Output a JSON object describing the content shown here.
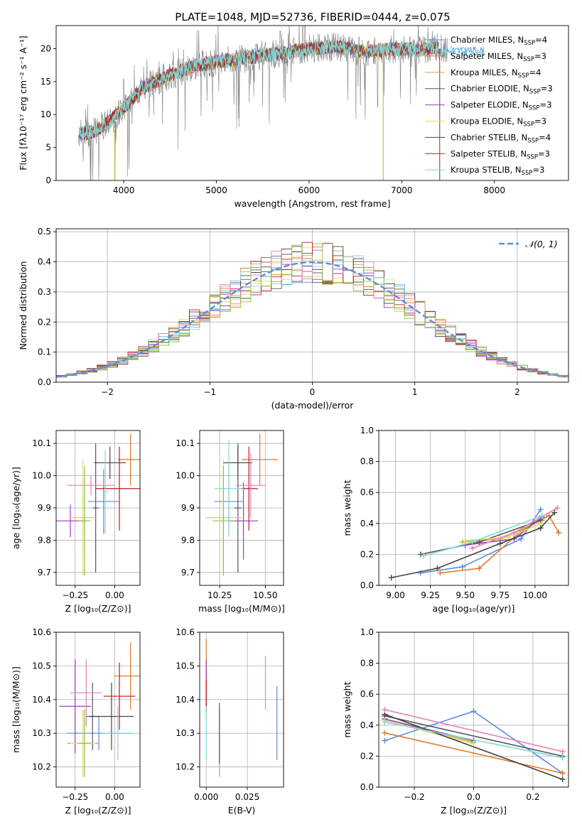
{
  "figure": {
    "title": "PLATE=1048, MJD=52736, FIBERID=0444, z=0.075"
  },
  "colors": {
    "blue": "#5b8ee0",
    "orange": "#e07a2a",
    "khaki": "#c8a83e",
    "gray": "#555555",
    "purple": "#9b3cc0",
    "yellow": "#dede60",
    "darkgray": "#444444",
    "red": "#c01818",
    "cyan": "#7fd8d8",
    "pink": "#e87fb8",
    "green": "#8cc63f",
    "gaussian": "#5b8ee0"
  },
  "chart_data": [
    {
      "id": "spectrum",
      "type": "line",
      "title": "PLATE=1048, MJD=52736, FIBERID=0444, z=0.075",
      "xlabel": "wavelength [Angstrom, rest frame]",
      "ylabel": "Flux [fλ10⁻¹⁷ erg cm⁻² s⁻¹ A⁻¹]",
      "xlim": [
        3270,
        8800
      ],
      "ylim": [
        0,
        23.5
      ],
      "xticks": [
        4000,
        5000,
        6000,
        7000,
        8000
      ],
      "yticks": [
        0,
        5,
        10,
        15,
        20
      ],
      "legend_position": "right",
      "legend": [
        {
          "name": "Chabrier MILES, N_SSP=4",
          "color": "#5b8ee0"
        },
        {
          "name": "Salpeter MILES, N_SSP=3",
          "color": "#e07a2a"
        },
        {
          "name": "Kroupa MILES, N_SSP=4",
          "color": "#c8a83e"
        },
        {
          "name": "Chabrier ELODIE, N_SSP=3",
          "color": "#555555"
        },
        {
          "name": "Salpeter ELODIE, N_SSP=3",
          "color": "#9b3cc0"
        },
        {
          "name": "Kroupa ELODIE, N_SSP=3",
          "color": "#dede60"
        },
        {
          "name": "Chabrier STELIB, N_SSP=4",
          "color": "#444444"
        },
        {
          "name": "Salpeter STELIB, N_SSP=3",
          "color": "#c01818"
        },
        {
          "name": "Kroupa STELIB, N_SSP=3",
          "color": "#7fd8d8"
        }
      ],
      "continuum": [
        [
          3500,
          7
        ],
        [
          3700,
          7.5
        ],
        [
          3850,
          9
        ],
        [
          4000,
          11
        ],
        [
          4200,
          14
        ],
        [
          4500,
          16
        ],
        [
          4800,
          17.5
        ],
        [
          5000,
          18
        ],
        [
          5200,
          18.3
        ],
        [
          5500,
          19
        ],
        [
          5800,
          19.5
        ],
        [
          6000,
          20
        ],
        [
          6300,
          20.3
        ],
        [
          6600,
          19.5
        ],
        [
          6800,
          19.8
        ],
        [
          7000,
          20
        ],
        [
          7200,
          19.8
        ],
        [
          7400,
          20.2
        ],
        [
          7500,
          20
        ]
      ]
    },
    {
      "id": "residuals",
      "type": "bar",
      "xlabel": "(data-model)/error",
      "ylabel": "Normed distribution",
      "xlim": [
        -2.5,
        2.5
      ],
      "ylim": [
        0,
        0.51
      ],
      "xticks": [
        -2,
        -1,
        0,
        1,
        2
      ],
      "yticks": [
        0.0,
        0.1,
        0.2,
        0.3,
        0.4,
        0.5
      ],
      "legend": [
        {
          "name": "𝒩(0, 1)",
          "color": "#5b8ee0",
          "style": "dashed"
        }
      ],
      "bin_width": 0.1
    },
    {
      "id": "age-vs-Z",
      "type": "scatter",
      "xlabel": "Z [log₁₀(Z/Z⊙)]",
      "ylabel": "age  [log₁₀(age/yr)]",
      "xlim": [
        -0.37,
        0.16
      ],
      "ylim": [
        9.66,
        10.14
      ],
      "xticks": [
        -0.25,
        0.0
      ],
      "xtick_labels": [
        "−0.25",
        "0.00"
      ],
      "yticks": [
        9.7,
        9.8,
        9.9,
        10.0,
        10.1
      ],
      "points": [
        {
          "x": -0.07,
          "y": 9.92,
          "xerr": 0.1,
          "yerr": 0.1,
          "color": "#5b8ee0"
        },
        {
          "x": 0.1,
          "y": 10.05,
          "xerr": 0.08,
          "yerr": 0.08,
          "color": "#e07a2a"
        },
        {
          "x": -0.2,
          "y": 9.87,
          "xerr": 0.08,
          "yerr": 0.11,
          "color": "#c8a83e"
        },
        {
          "x": -0.12,
          "y": 9.9,
          "xerr": 0.02,
          "yerr": 0.2,
          "color": "#555555"
        },
        {
          "x": -0.28,
          "y": 9.86,
          "xerr": 0.1,
          "yerr": 0.05,
          "color": "#9b3cc0"
        },
        {
          "x": -0.2,
          "y": 9.87,
          "xerr": 0.08,
          "yerr": 0.18,
          "color": "#dede60"
        },
        {
          "x": -0.03,
          "y": 10.04,
          "xerr": 0.1,
          "yerr": 0.05,
          "color": "#444444"
        },
        {
          "x": 0.03,
          "y": 9.96,
          "xerr": 0.15,
          "yerr": 0.13,
          "color": "#c01818"
        },
        {
          "x": -0.15,
          "y": 9.97,
          "xerr": 0.15,
          "yerr": 0.03,
          "color": "#e87fb8"
        },
        {
          "x": -0.19,
          "y": 9.86,
          "xerr": 0.04,
          "yerr": 0.17,
          "color": "#8cc63f"
        },
        {
          "x": -0.06,
          "y": 9.95,
          "xerr": 0.02,
          "yerr": 0.13,
          "color": "#7fd8d8"
        }
      ]
    },
    {
      "id": "age-vs-mass",
      "type": "scatter",
      "xlabel": "mass [log₁₀(M/M⊙)]",
      "ylabel": "",
      "xlim": [
        10.14,
        10.6
      ],
      "ylim": [
        9.66,
        10.14
      ],
      "xticks": [
        10.25,
        10.5
      ],
      "xtick_labels": [
        "10.25",
        "10.50"
      ],
      "yticks": [
        9.7,
        9.8,
        9.9,
        10.0,
        10.1
      ],
      "points": [
        {
          "x": 10.3,
          "y": 9.92,
          "xerr": 0.08,
          "yerr": 0.1,
          "color": "#5b8ee0"
        },
        {
          "x": 10.47,
          "y": 10.05,
          "xerr": 0.1,
          "yerr": 0.08,
          "color": "#e07a2a"
        },
        {
          "x": 10.27,
          "y": 9.87,
          "xerr": 0.1,
          "yerr": 0.11,
          "color": "#c8a83e"
        },
        {
          "x": 10.35,
          "y": 9.9,
          "xerr": 0.02,
          "yerr": 0.2,
          "color": "#555555"
        },
        {
          "x": 10.38,
          "y": 9.86,
          "xerr": 0.08,
          "yerr": 0.12,
          "color": "#9b3cc0"
        },
        {
          "x": 10.27,
          "y": 9.87,
          "xerr": 0.1,
          "yerr": 0.18,
          "color": "#dede60"
        },
        {
          "x": 10.35,
          "y": 10.04,
          "xerr": 0.08,
          "yerr": 0.05,
          "color": "#444444"
        },
        {
          "x": 10.41,
          "y": 9.96,
          "xerr": 0.05,
          "yerr": 0.13,
          "color": "#c01818"
        },
        {
          "x": 10.42,
          "y": 9.97,
          "xerr": 0.08,
          "yerr": 0.1,
          "color": "#e87fb8"
        },
        {
          "x": 10.27,
          "y": 9.86,
          "xerr": 0.06,
          "yerr": 0.17,
          "color": "#8cc63f"
        },
        {
          "x": 10.3,
          "y": 9.96,
          "xerr": 0.08,
          "yerr": 0.15,
          "color": "#7fd8d8"
        }
      ]
    },
    {
      "id": "weight-vs-age",
      "type": "line",
      "xlabel": "age  [log₁₀(age/yr)]",
      "ylabel": "mass weight",
      "xlim": [
        8.88,
        10.24
      ],
      "ylim": [
        0,
        1.0
      ],
      "xticks": [
        9.0,
        9.25,
        9.5,
        9.75,
        10.0
      ],
      "xtick_labels": [
        "9.00",
        "9.25",
        "9.50",
        "9.75",
        "10.00"
      ],
      "yticks": [
        0.0,
        0.2,
        0.4,
        0.6,
        0.8,
        1.0
      ],
      "series": [
        {
          "color": "#5b8ee0",
          "points": [
            [
              9.18,
              0.08
            ],
            [
              9.48,
              0.12
            ],
            [
              9.9,
              0.3
            ],
            [
              10.04,
              0.49
            ]
          ]
        },
        {
          "color": "#e07a2a",
          "points": [
            [
              9.32,
              0.08
            ],
            [
              9.6,
              0.11
            ],
            [
              9.9,
              0.35
            ],
            [
              10.1,
              0.45
            ],
            [
              10.17,
              0.34
            ]
          ]
        },
        {
          "color": "#c8a83e",
          "points": [
            [
              9.48,
              0.28
            ],
            [
              9.75,
              0.3
            ],
            [
              10.05,
              0.42
            ]
          ]
        },
        {
          "color": "#555555",
          "points": [
            [
              9.18,
              0.2
            ],
            [
              9.6,
              0.28
            ],
            [
              10.04,
              0.42
            ]
          ]
        },
        {
          "color": "#9b3cc0",
          "points": [
            [
              9.5,
              0.26
            ],
            [
              9.85,
              0.3
            ],
            [
              10.05,
              0.44
            ]
          ]
        },
        {
          "color": "#dede60",
          "points": [
            [
              9.5,
              0.29
            ],
            [
              9.8,
              0.31
            ],
            [
              10.05,
              0.4
            ]
          ]
        },
        {
          "color": "#444444",
          "points": [
            [
              8.97,
              0.05
            ],
            [
              9.3,
              0.11
            ],
            [
              9.75,
              0.27
            ],
            [
              10.04,
              0.37
            ],
            [
              10.14,
              0.47
            ]
          ]
        },
        {
          "color": "#e87fb8",
          "points": [
            [
              9.55,
              0.24
            ],
            [
              9.85,
              0.34
            ],
            [
              10.16,
              0.5
            ]
          ]
        },
        {
          "color": "#7fd8d8",
          "points": [
            [
              9.2,
              0.19
            ],
            [
              9.55,
              0.28
            ],
            [
              10.05,
              0.45
            ]
          ]
        }
      ]
    },
    {
      "id": "mass-vs-Z",
      "type": "scatter",
      "xlabel": "Z [log₁₀(Z/Z⊙)]",
      "ylabel": "mass [log₁₀(M/M⊙)]",
      "xlim": [
        -0.37,
        0.16
      ],
      "ylim": [
        10.14,
        10.6
      ],
      "xticks": [
        -0.25,
        0.0
      ],
      "xtick_labels": [
        "−0.25",
        "0.00"
      ],
      "yticks": [
        10.2,
        10.3,
        10.4,
        10.5,
        10.6
      ],
      "points": [
        {
          "x": -0.1,
          "y": 10.3,
          "xerr": 0.2,
          "yerr": 0.05,
          "color": "#5b8ee0"
        },
        {
          "x": 0.1,
          "y": 10.47,
          "xerr": 0.1,
          "yerr": 0.1,
          "color": "#e07a2a"
        },
        {
          "x": -0.2,
          "y": 10.27,
          "xerr": 0.1,
          "yerr": 0.1,
          "color": "#c8a83e"
        },
        {
          "x": -0.14,
          "y": 10.35,
          "xerr": 0.04,
          "yerr": 0.1,
          "color": "#555555"
        },
        {
          "x": -0.25,
          "y": 10.38,
          "xerr": 0.1,
          "yerr": 0.14,
          "color": "#9b3cc0"
        },
        {
          "x": -0.2,
          "y": 10.27,
          "xerr": 0.08,
          "yerr": 0.1,
          "color": "#dede60"
        },
        {
          "x": -0.02,
          "y": 10.35,
          "xerr": 0.14,
          "yerr": 0.1,
          "color": "#444444"
        },
        {
          "x": 0.03,
          "y": 10.41,
          "xerr": 0.1,
          "yerr": 0.1,
          "color": "#c01818"
        },
        {
          "x": -0.18,
          "y": 10.42,
          "xerr": 0.1,
          "yerr": 0.1,
          "color": "#e87fb8"
        },
        {
          "x": -0.19,
          "y": 10.27,
          "xerr": 0.04,
          "yerr": 0.1,
          "color": "#8cc63f"
        },
        {
          "x": 0.02,
          "y": 10.3,
          "xerr": 0.1,
          "yerr": 0.08,
          "color": "#7fd8d8"
        }
      ]
    },
    {
      "id": "mass-vs-ebv",
      "type": "scatter",
      "xlabel": "E(B-V)",
      "ylabel": "",
      "xlim": [
        -0.004,
        0.047
      ],
      "ylim": [
        10.14,
        10.6
      ],
      "xticks": [
        0.0,
        0.025
      ],
      "xtick_labels": [
        "0.000",
        "0.025"
      ],
      "yticks": [
        10.2,
        10.3,
        10.4,
        10.5,
        10.6
      ],
      "points": [
        {
          "x": 0.043,
          "y": 10.33,
          "xerr": 0,
          "yerr": 0.11,
          "color": "#5b8ee0"
        },
        {
          "x": 0.0,
          "y": 10.47,
          "xerr": 0,
          "yerr": 0.11,
          "color": "#e07a2a"
        },
        {
          "x": 0.0,
          "y": 10.44,
          "xerr": 0,
          "yerr": 0.08,
          "color": "#9b3cc0"
        },
        {
          "x": 0.0,
          "y": 10.41,
          "xerr": 0,
          "yerr": 0.05,
          "color": "#c01818"
        },
        {
          "x": 0.036,
          "y": 10.45,
          "xerr": 0,
          "yerr": 0.08,
          "color": "#e87fb8"
        },
        {
          "x": 0.0,
          "y": 10.3,
          "xerr": 0,
          "yerr": 0.08,
          "color": "#7fd8d8"
        },
        {
          "x": 0.008,
          "y": 10.27,
          "xerr": 0,
          "yerr": 0.1,
          "color": "#8cc63f"
        },
        {
          "x": 0.008,
          "y": 10.3,
          "xerr": 0,
          "yerr": 0.09,
          "color": "#555555"
        }
      ]
    },
    {
      "id": "weight-vs-Z",
      "type": "line",
      "xlabel": "Z [log₁₀(Z/Z⊙)]",
      "ylabel": "mass weight",
      "xlim": [
        -0.32,
        0.32
      ],
      "ylim": [
        0,
        1.0
      ],
      "xticks": [
        -0.2,
        0.0,
        0.2
      ],
      "xtick_labels": [
        "−0.2",
        "0.0",
        "0.2"
      ],
      "yticks": [
        0.0,
        0.2,
        0.4,
        0.6,
        0.8,
        1.0
      ],
      "series": [
        {
          "color": "#5b8ee0",
          "points": [
            [
              -0.3,
              0.3
            ],
            [
              0.0,
              0.49
            ],
            [
              0.3,
              0.09
            ]
          ]
        },
        {
          "color": "#e07a2a",
          "points": [
            [
              -0.3,
              0.35
            ],
            [
              0.3,
              0.09
            ]
          ]
        },
        {
          "color": "#c8a83e",
          "points": [
            [
              -0.3,
              0.44
            ],
            [
              0.0,
              0.29
            ]
          ]
        },
        {
          "color": "#555555",
          "points": [
            [
              -0.3,
              0.46
            ],
            [
              0.3,
              0.2
            ]
          ]
        },
        {
          "color": "#9b3cc0",
          "points": [
            [
              -0.3,
              0.44
            ],
            [
              0.0,
              0.3
            ]
          ]
        },
        {
          "color": "#dede60",
          "points": [
            [
              -0.3,
              0.43
            ],
            [
              0.0,
              0.28
            ]
          ]
        },
        {
          "color": "#444444",
          "points": [
            [
              -0.3,
              0.47
            ],
            [
              0.3,
              0.05
            ]
          ]
        },
        {
          "color": "#e87fb8",
          "points": [
            [
              -0.3,
              0.5
            ],
            [
              0.3,
              0.23
            ]
          ]
        },
        {
          "color": "#7fd8d8",
          "points": [
            [
              -0.3,
              0.42
            ],
            [
              0.3,
              0.19
            ]
          ]
        }
      ]
    }
  ]
}
